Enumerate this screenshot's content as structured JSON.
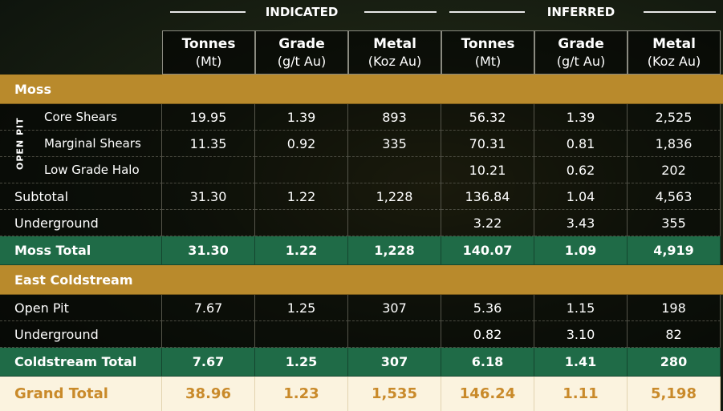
{
  "groups": [
    "INDICATED",
    "INFERRED"
  ],
  "columns": [
    {
      "name": "Tonnes",
      "unit": "(Mt)"
    },
    {
      "name": "Grade",
      "unit": "(g/t Au)"
    },
    {
      "name": "Metal",
      "unit": "(Koz Au)"
    },
    {
      "name": "Tonnes",
      "unit": "(Mt)"
    },
    {
      "name": "Grade",
      "unit": "(g/t Au)"
    },
    {
      "name": "Metal",
      "unit": "(Koz Au)"
    }
  ],
  "sections": [
    {
      "title": "Moss",
      "subgroup": {
        "label": "OPEN PIT",
        "rows": [
          {
            "label": "Core Shears",
            "values": [
              "19.95",
              "1.39",
              "893",
              "56.32",
              "1.39",
              "2,525"
            ]
          },
          {
            "label": "Marginal Shears",
            "values": [
              "11.35",
              "0.92",
              "335",
              "70.31",
              "0.81",
              "1,836"
            ]
          },
          {
            "label": "Low Grade Halo",
            "values": [
              null,
              null,
              null,
              "10.21",
              "0.62",
              "202"
            ]
          }
        ]
      },
      "rows": [
        {
          "label": "Subtotal",
          "values": [
            "31.30",
            "1.22",
            "1,228",
            "136.84",
            "1.04",
            "4,563"
          ]
        },
        {
          "label": "Underground",
          "values": [
            null,
            null,
            null,
            "3.22",
            "3.43",
            "355"
          ]
        }
      ],
      "total": {
        "label": "Moss Total",
        "values": [
          "31.30",
          "1.22",
          "1,228",
          "140.07",
          "1.09",
          "4,919"
        ]
      }
    },
    {
      "title": "East Coldstream",
      "rows": [
        {
          "label": "Open Pit",
          "values": [
            "7.67",
            "1.25",
            "307",
            "5.36",
            "1.15",
            "198"
          ]
        },
        {
          "label": "Underground",
          "values": [
            null,
            null,
            null,
            "0.82",
            "3.10",
            "82"
          ]
        }
      ],
      "total": {
        "label": "Coldstream Total",
        "values": [
          "7.67",
          "1.25",
          "307",
          "6.18",
          "1.41",
          "280"
        ]
      }
    }
  ],
  "grand_total": {
    "label": "Grand Total",
    "values": [
      "38.96",
      "1.23",
      "1,535",
      "146.24",
      "1.11",
      "5,198"
    ]
  }
}
